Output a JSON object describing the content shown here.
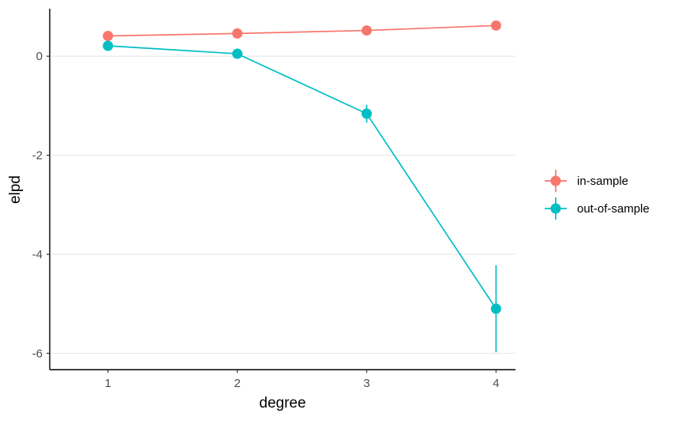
{
  "chart_data": {
    "type": "line",
    "xlabel": "degree",
    "ylabel": "elpd",
    "x": [
      1,
      2,
      3,
      4
    ],
    "xticks": [
      "1",
      "2",
      "3",
      "4"
    ],
    "yticks": [
      0,
      -2,
      -4,
      -6
    ],
    "ytick_labels": [
      "0",
      "-2",
      "-4",
      "-6"
    ],
    "xlim": [
      0.55,
      4.15
    ],
    "ylim": [
      -6.33,
      0.96
    ],
    "grid": "horizontal major",
    "legend_position": "right",
    "series": [
      {
        "name": "in-sample",
        "color": "#F8766D",
        "values": [
          0.41,
          0.46,
          0.52,
          0.62
        ],
        "error": [
          0.05,
          0.05,
          0.05,
          0.05
        ]
      },
      {
        "name": "out-of-sample",
        "color": "#00BFC4",
        "values": [
          0.21,
          0.05,
          -1.16,
          -5.1
        ],
        "error": [
          0.08,
          0.08,
          0.18,
          0.88
        ]
      }
    ]
  }
}
